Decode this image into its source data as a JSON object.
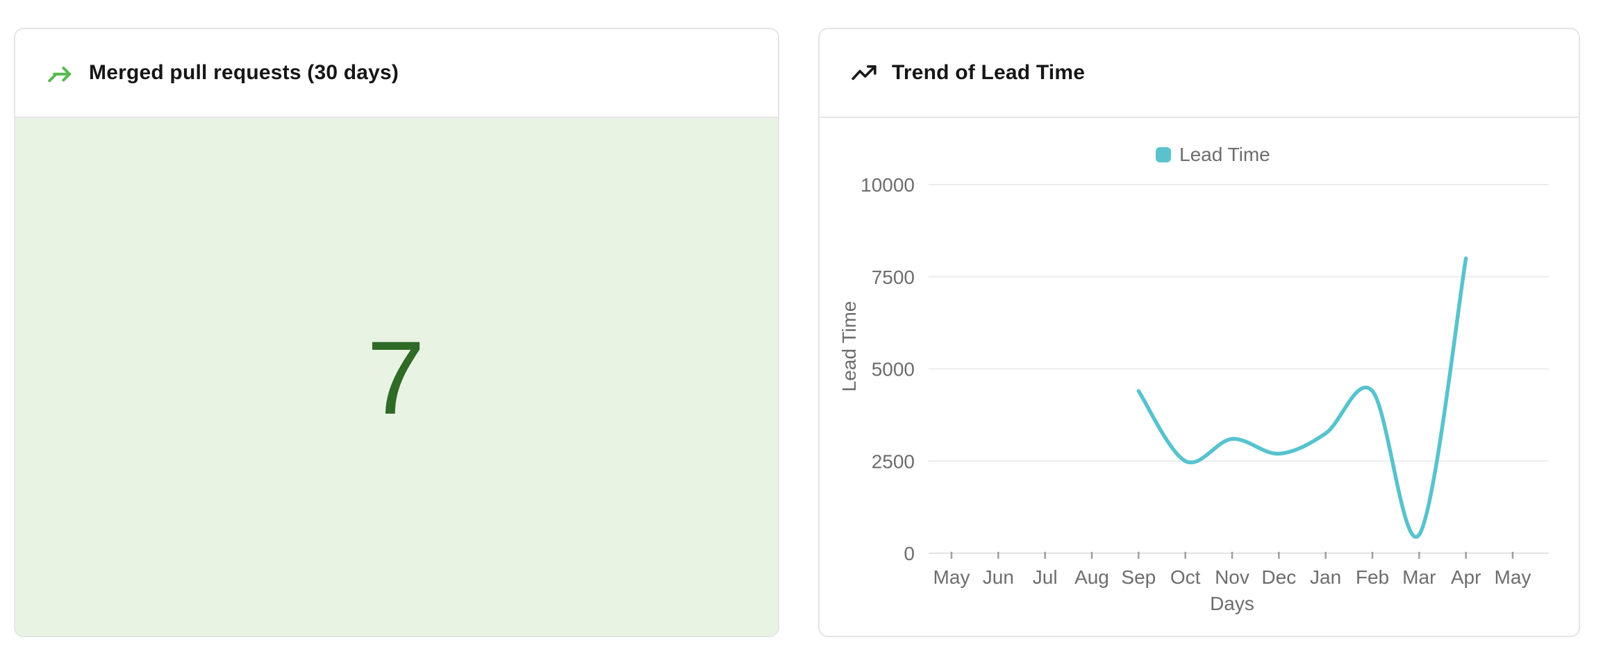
{
  "left_card": {
    "title": "Merged pull requests (30 days)",
    "value": "7",
    "icon": "merge-arrow-icon",
    "colors": {
      "icon": "#55b94e",
      "value": "#2f6b27",
      "body_bg": "#e9f3e4"
    }
  },
  "right_card": {
    "title": "Trend of Lead Time",
    "icon": "trending-up-icon",
    "icon_color": "#1a1a1a"
  },
  "chart_data": {
    "type": "line",
    "title": "Trend of Lead Time",
    "xlabel": "Days",
    "ylabel": "Lead Time",
    "legend": [
      {
        "label": "Lead Time",
        "color": "#5bc2cd"
      }
    ],
    "legend_position": "top-center",
    "categories": [
      "May",
      "Jun",
      "Jul",
      "Aug",
      "Sep",
      "Oct",
      "Nov",
      "Dec",
      "Jan",
      "Feb",
      "Mar",
      "Apr",
      "May"
    ],
    "series": [
      {
        "name": "Lead Time",
        "color": "#57c3ce",
        "smooth": true,
        "points": [
          {
            "x": "Sep",
            "y": 4400
          },
          {
            "x": "Oct",
            "y": 2500
          },
          {
            "x": "Nov",
            "y": 3100
          },
          {
            "x": "Dec",
            "y": 2700
          },
          {
            "x": "Jan",
            "y": 3250
          },
          {
            "x": "Feb",
            "y": 4400
          },
          {
            "x": "Mar",
            "y": 500
          },
          {
            "x": "Apr",
            "y": 8000
          }
        ]
      }
    ],
    "ylim": [
      0,
      10000
    ],
    "yticks": [
      0,
      2500,
      5000,
      7500,
      10000
    ],
    "grid": true,
    "axis_text_color": "#6d6d6d",
    "grid_color": "#ececec",
    "axis_line_color": "#e3e3e3",
    "tick_mark_color": "#9e9e9e"
  }
}
